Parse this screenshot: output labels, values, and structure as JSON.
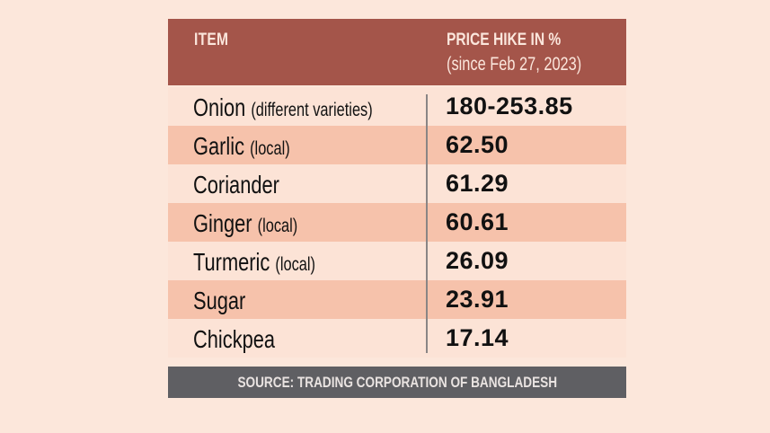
{
  "header": {
    "item_label": "ITEM",
    "price_label": "PRICE HIKE IN %",
    "price_sub": "(since Feb 27, 2023)"
  },
  "rows": [
    {
      "name": "Onion",
      "qualifier": "(different varieties)",
      "value": "180-253.85"
    },
    {
      "name": "Garlic",
      "qualifier": "(local)",
      "value": "62.50"
    },
    {
      "name": "Coriander",
      "qualifier": "",
      "value": "61.29"
    },
    {
      "name": "Ginger",
      "qualifier": "(local)",
      "value": "60.61"
    },
    {
      "name": "Turmeric",
      "qualifier": "(local)",
      "value": "26.09"
    },
    {
      "name": "Sugar",
      "qualifier": "",
      "value": "23.91"
    },
    {
      "name": "Chickpea",
      "qualifier": "",
      "value": "17.14"
    }
  ],
  "source": "SOURCE: TRADING CORPORATION OF BANGLADESH",
  "colors": {
    "header_bg": "#a4554a",
    "row_alt": "#f6c2ab",
    "row_plain": "#fce3d6",
    "source_bg": "#5f5f63",
    "page_bg": "#fce7db"
  },
  "chart_data": {
    "type": "table",
    "title": "",
    "columns": [
      "ITEM",
      "PRICE HIKE IN % (since Feb 27, 2023)"
    ],
    "rows": [
      [
        "Onion (different varieties)",
        "180-253.85"
      ],
      [
        "Garlic (local)",
        "62.50"
      ],
      [
        "Coriander",
        "61.29"
      ],
      [
        "Ginger (local)",
        "60.61"
      ],
      [
        "Turmeric (local)",
        "26.09"
      ],
      [
        "Sugar",
        "23.91"
      ],
      [
        "Chickpea",
        "17.14"
      ]
    ],
    "source": "SOURCE: TRADING CORPORATION OF BANGLADESH"
  }
}
